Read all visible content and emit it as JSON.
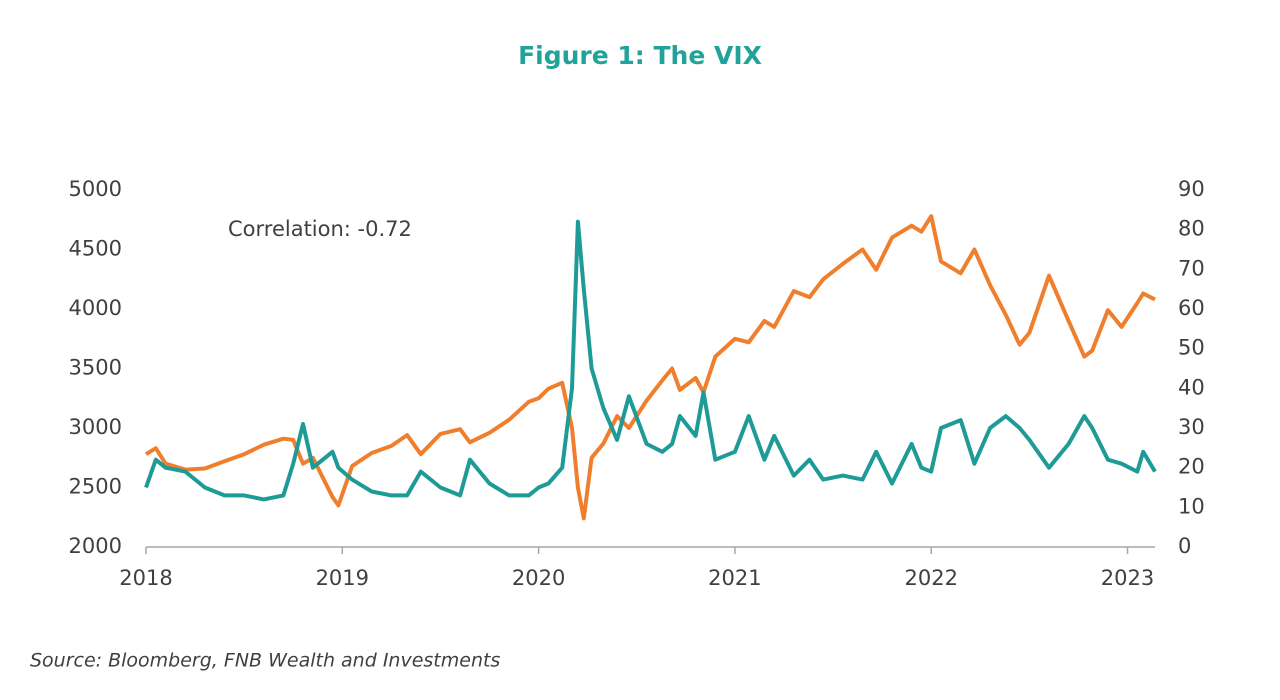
{
  "chart_data": {
    "type": "line",
    "title": "Figure 1: The VIX",
    "annotation": "Correlation: -0.72",
    "source": "Source: Bloomberg, FNB Wealth and Investments",
    "x": [
      2018.0,
      2018.05,
      2018.1,
      2018.2,
      2018.3,
      2018.4,
      2018.5,
      2018.6,
      2018.7,
      2018.75,
      2018.8,
      2018.85,
      2018.95,
      2018.98,
      2019.05,
      2019.15,
      2019.25,
      2019.33,
      2019.4,
      2019.5,
      2019.6,
      2019.65,
      2019.75,
      2019.85,
      2019.95,
      2020.0,
      2020.05,
      2020.12,
      2020.17,
      2020.2,
      2020.23,
      2020.27,
      2020.33,
      2020.4,
      2020.46,
      2020.55,
      2020.63,
      2020.68,
      2020.72,
      2020.8,
      2020.84,
      2020.9,
      2021.0,
      2021.07,
      2021.15,
      2021.2,
      2021.3,
      2021.38,
      2021.45,
      2021.55,
      2021.65,
      2021.72,
      2021.8,
      2021.9,
      2021.95,
      2022.0,
      2022.05,
      2022.15,
      2022.22,
      2022.3,
      2022.38,
      2022.45,
      2022.5,
      2022.6,
      2022.7,
      2022.78,
      2022.82,
      2022.9,
      2022.97,
      2023.05,
      2023.08,
      2023.14
    ],
    "series": [
      {
        "color": "#f07f2d",
        "values": [
          2780,
          2830,
          2700,
          2650,
          2660,
          2720,
          2780,
          2860,
          2910,
          2900,
          2700,
          2750,
          2420,
          2350,
          2680,
          2790,
          2850,
          2940,
          2780,
          2950,
          2990,
          2880,
          2960,
          3070,
          3220,
          3250,
          3330,
          3380,
          3000,
          2500,
          2240,
          2750,
          2870,
          3100,
          3000,
          3230,
          3400,
          3500,
          3320,
          3420,
          3300,
          3600,
          3750,
          3720,
          3900,
          3850,
          4150,
          4100,
          4250,
          4380,
          4500,
          4330,
          4600,
          4700,
          4650,
          4780,
          4400,
          4300,
          4500,
          4200,
          3950,
          3700,
          3800,
          4280,
          3900,
          3600,
          3650,
          3990,
          3850,
          4050,
          4130,
          4080
        ]
      },
      {
        "color": "#1e9b97",
        "axis": "y2",
        "values": [
          15,
          22,
          20,
          19,
          15,
          13,
          13,
          12,
          13,
          21,
          31,
          20,
          24,
          20,
          17,
          14,
          13,
          13,
          19,
          15,
          13,
          22,
          16,
          13,
          13,
          15,
          16,
          20,
          40,
          82,
          65,
          45,
          35,
          27,
          38,
          26,
          24,
          26,
          33,
          28,
          39,
          22,
          24,
          33,
          22,
          28,
          18,
          22,
          17,
          18,
          17,
          24,
          16,
          26,
          20,
          19,
          30,
          32,
          21,
          30,
          33,
          30,
          27,
          20,
          26,
          33,
          30,
          22,
          21,
          19,
          24,
          19
        ]
      }
    ],
    "xlim": [
      2018,
      2023.14
    ],
    "xticks": [
      2018,
      2019,
      2020,
      2021,
      2022,
      2023
    ],
    "ylim": [
      2000,
      5000
    ],
    "yticks": [
      2000,
      2500,
      3000,
      3500,
      4000,
      4500,
      5000
    ],
    "y2lim": [
      0,
      90
    ],
    "y2ticks": [
      0,
      10,
      20,
      30,
      40,
      50,
      60,
      70,
      80,
      90
    ],
    "grid": false
  }
}
